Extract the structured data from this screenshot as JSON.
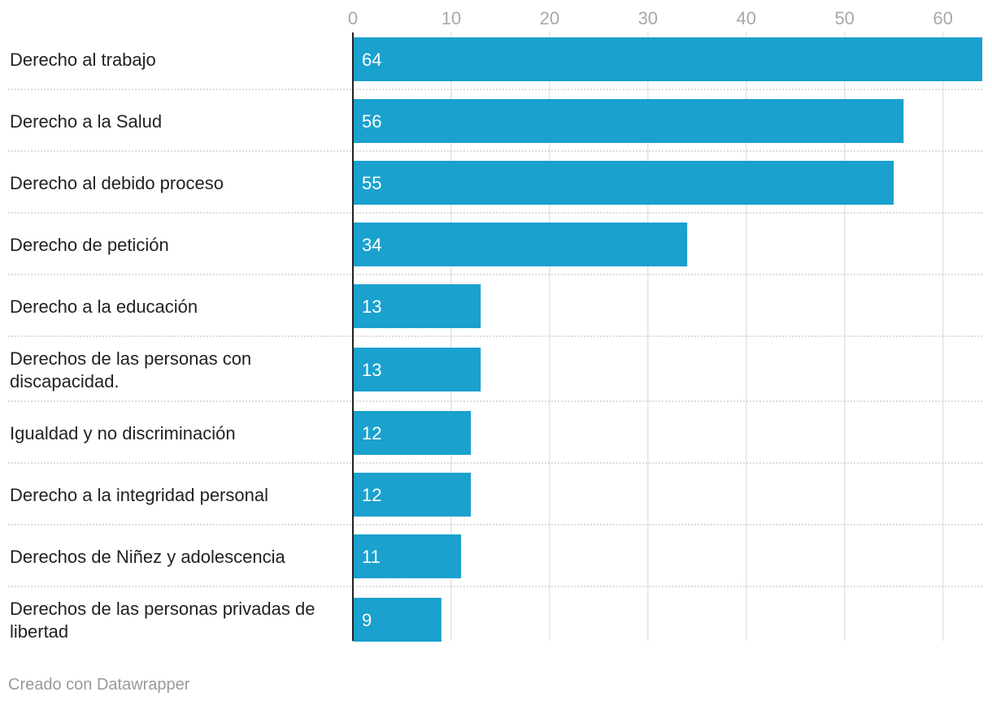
{
  "chart_data": {
    "type": "bar",
    "orientation": "horizontal",
    "categories": [
      "Derecho al trabajo",
      "Derecho a la Salud",
      "Derecho al debido proceso",
      "Derecho de petición",
      "Derecho a la educación",
      "Derechos de las personas con discapacidad.",
      "Igualdad y no discriminación",
      "Derecho a la integridad personal",
      "Derechos de Niñez y adolescencia",
      "Derechos de las personas privadas de libertad"
    ],
    "values": [
      64,
      56,
      55,
      34,
      13,
      13,
      12,
      12,
      11,
      9
    ],
    "xlim": [
      0,
      64
    ],
    "xticks": [
      0,
      10,
      20,
      30,
      40,
      50,
      60
    ],
    "bar_color": "#1aa1cd",
    "grid": true,
    "title": "",
    "xlabel": "",
    "ylabel": ""
  },
  "footer": {
    "credit": "Creado con Datawrapper"
  }
}
